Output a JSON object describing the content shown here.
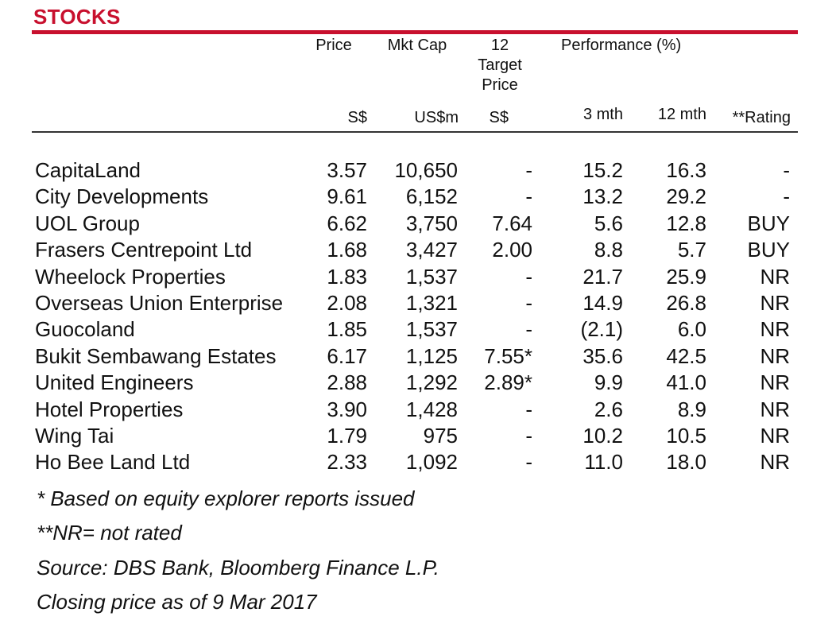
{
  "title": "STOCKS",
  "header": {
    "price": "Price",
    "mkt_cap": "Mkt Cap",
    "target_line1": "12",
    "target_line2": "Target",
    "target_line3": "Price",
    "performance": "Performance (%)",
    "unit_price": "S$",
    "unit_mktcap": "US$m",
    "unit_target": "S$",
    "col_3mth": "3 mth",
    "col_12mth": "12 mth",
    "col_rating": "**Rating"
  },
  "rows": [
    {
      "name": "CapitaLand",
      "price": "3.57",
      "mktcap": "10,650",
      "target": "-",
      "m3": "15.2",
      "m12": "16.3",
      "rating": "-"
    },
    {
      "name": "City Developments",
      "price": "9.61",
      "mktcap": "6,152",
      "target": "-",
      "m3": "13.2",
      "m12": "29.2",
      "rating": "-"
    },
    {
      "name": "UOL Group",
      "price": "6.62",
      "mktcap": "3,750",
      "target": "7.64",
      "m3": "5.6",
      "m12": "12.8",
      "rating": "BUY"
    },
    {
      "name": "Frasers Centrepoint Ltd",
      "price": "1.68",
      "mktcap": "3,427",
      "target": "2.00",
      "m3": "8.8",
      "m12": "5.7",
      "rating": "BUY"
    },
    {
      "name": "Wheelock Properties",
      "price": "1.83",
      "mktcap": "1,537",
      "target": "-",
      "m3": "21.7",
      "m12": "25.9",
      "rating": "NR"
    },
    {
      "name": "Overseas Union Enterprise",
      "price": "2.08",
      "mktcap": "1,321",
      "target": "-",
      "m3": "14.9",
      "m12": "26.8",
      "rating": "NR"
    },
    {
      "name": "Guocoland",
      "price": "1.85",
      "mktcap": "1,537",
      "target": "-",
      "m3": "(2.1)",
      "m12": "6.0",
      "rating": "NR"
    },
    {
      "name": "Bukit Sembawang Estates",
      "price": "6.17",
      "mktcap": "1,125",
      "target": "7.55*",
      "m3": "35.6",
      "m12": "42.5",
      "rating": "NR"
    },
    {
      "name": "United Engineers",
      "price": "2.88",
      "mktcap": "1,292",
      "target": "2.89*",
      "m3": "9.9",
      "m12": "41.0",
      "rating": "NR"
    },
    {
      "name": "Hotel Properties",
      "price": "3.90",
      "mktcap": "1,428",
      "target": "-",
      "m3": "2.6",
      "m12": "8.9",
      "rating": "NR"
    },
    {
      "name": "Wing Tai",
      "price": "1.79",
      "mktcap": "975",
      "target": "-",
      "m3": "10.2",
      "m12": "10.5",
      "rating": "NR"
    },
    {
      "name": "Ho Bee Land Ltd",
      "price": "2.33",
      "mktcap": "1,092",
      "target": "-",
      "m3": "11.0",
      "m12": "18.0",
      "rating": "NR"
    }
  ],
  "notes": [
    "* Based on equity explorer reports issued",
    "**NR= not rated",
    "Source: DBS Bank, Bloomberg Finance L.P.",
    "Closing price as of  9 Mar 2017"
  ],
  "colors": {
    "accent": "#c8102e",
    "text": "#111111",
    "rule": "#333333"
  }
}
